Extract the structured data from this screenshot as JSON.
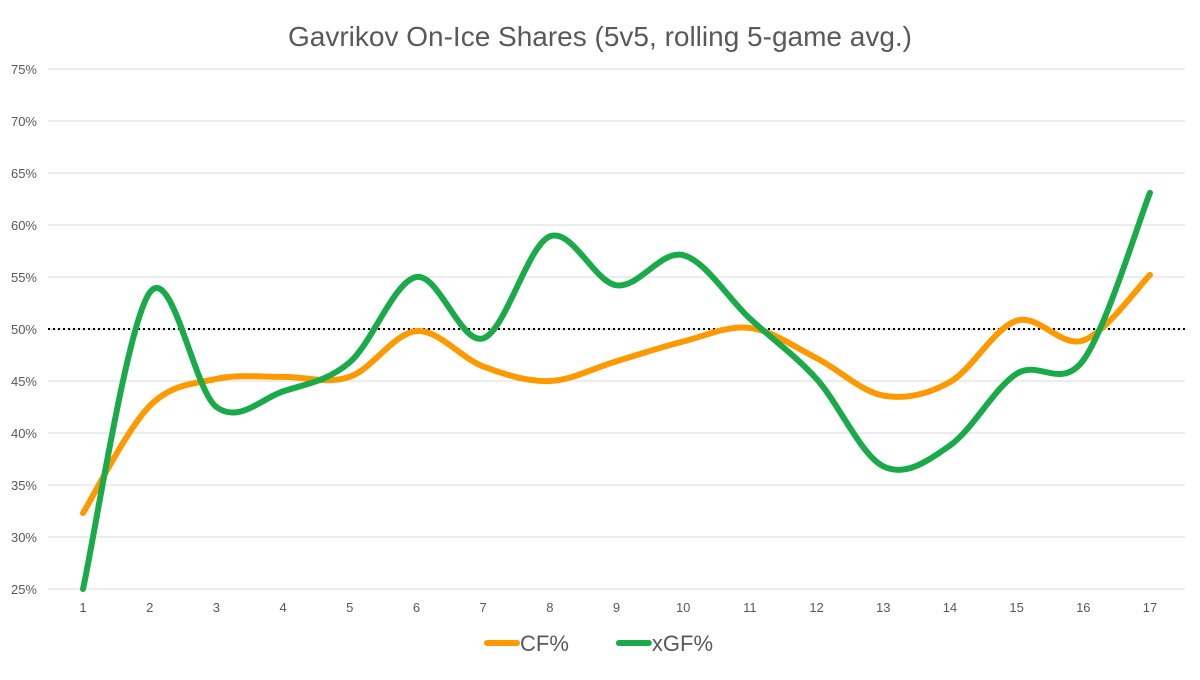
{
  "chart_data": {
    "type": "line",
    "title": "Gavrikov On-Ice Shares (5v5, rolling 5-game avg.)",
    "xlabel": "",
    "ylabel": "",
    "x": [
      1,
      2,
      3,
      4,
      5,
      6,
      7,
      8,
      9,
      10,
      11,
      12,
      13,
      14,
      15,
      16,
      17
    ],
    "x_tick_labels": [
      "1",
      "2",
      "3",
      "4",
      "5",
      "6",
      "7",
      "8",
      "9",
      "10",
      "11",
      "12",
      "13",
      "14",
      "15",
      "16",
      "17"
    ],
    "ylim": [
      25,
      75
    ],
    "y_ticks": [
      25,
      30,
      35,
      40,
      45,
      50,
      55,
      60,
      65,
      70,
      75
    ],
    "y_tick_labels": [
      "25%",
      "30%",
      "35%",
      "40%",
      "45%",
      "50%",
      "55%",
      "60%",
      "65%",
      "70%",
      "75%"
    ],
    "grid": true,
    "smooth": true,
    "reference_line": {
      "y": 50,
      "style": "dotted",
      "color": "#000000"
    },
    "legend_position": "bottom",
    "series": [
      {
        "name": "CF%",
        "color": "#FF9900",
        "values": [
          32.3,
          42.6,
          45.2,
          45.4,
          45.4,
          49.8,
          46.4,
          45.0,
          46.9,
          48.8,
          50.1,
          47.2,
          43.6,
          44.9,
          50.8,
          48.9,
          55.2
        ]
      },
      {
        "name": "xGF%",
        "color": "#1AAA4A",
        "values": [
          25.0,
          53.5,
          42.5,
          44.0,
          46.8,
          55.0,
          49.1,
          58.9,
          54.2,
          57.1,
          51.0,
          45.2,
          36.8,
          38.8,
          45.7,
          47.0,
          63.1
        ]
      }
    ]
  }
}
